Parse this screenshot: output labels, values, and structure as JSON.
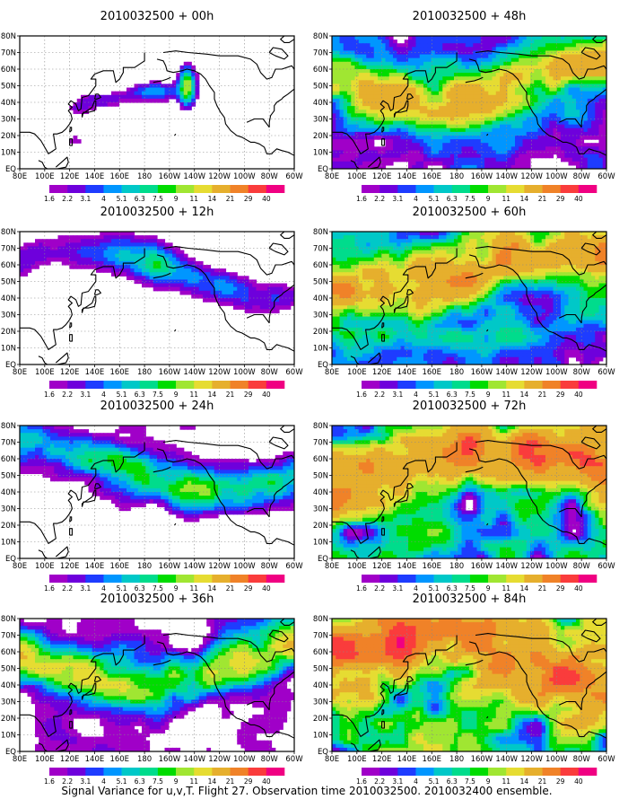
{
  "caption": "Signal Variance for u,v,T. Flight 27. Observation time 2010032500. 2010032400 ensemble.",
  "chart_data": {
    "type": "heatmap",
    "xticks": [
      "80E",
      "100E",
      "120E",
      "140E",
      "160E",
      "180",
      "160W",
      "140W",
      "120W",
      "100W",
      "80W",
      "60W"
    ],
    "xlim": [
      "80E",
      "60W"
    ],
    "yticks": [
      "EQ",
      "10N",
      "20N",
      "30N",
      "40N",
      "50N",
      "60N",
      "70N",
      "80N"
    ],
    "ylim": [
      "EQ",
      "80N"
    ],
    "grid": true,
    "colorbar": {
      "levels": [
        "1.6",
        "2.2",
        "3.1",
        "4",
        "5.1",
        "6.3",
        "7.5",
        "9",
        "11",
        "14",
        "21",
        "29",
        "40"
      ],
      "colors": [
        "#a000c8",
        "#6e00dc",
        "#1e3cff",
        "#0096ff",
        "#00c8c8",
        "#00dc8c",
        "#00dc00",
        "#a0e632",
        "#e6dc32",
        "#e6af2d",
        "#f08228",
        "#fa3c3c",
        "#f00082"
      ]
    },
    "panels": [
      {
        "title": "2010032500 + 00h",
        "lead_hours": 0
      },
      {
        "title": "2010032500 + 48h",
        "lead_hours": 48
      },
      {
        "title": "2010032500 + 12h",
        "lead_hours": 12
      },
      {
        "title": "2010032500 + 60h",
        "lead_hours": 60
      },
      {
        "title": "2010032500 + 24h",
        "lead_hours": 24
      },
      {
        "title": "2010032500 + 72h",
        "lead_hours": 72
      },
      {
        "title": "2010032500 + 36h",
        "lead_hours": 36
      },
      {
        "title": "2010032500 + 84h",
        "lead_hours": 84
      }
    ]
  }
}
